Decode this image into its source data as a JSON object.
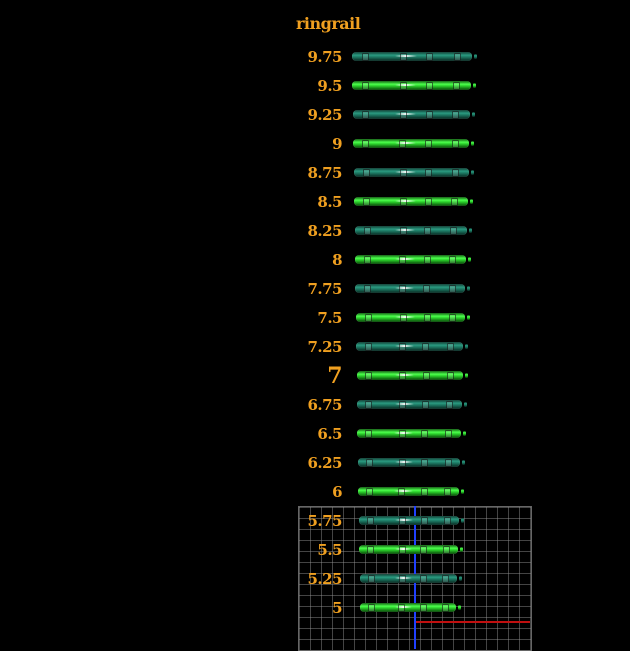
{
  "title": "ringrail",
  "colors": {
    "label": "#f0a020",
    "teal_bar": "#1d7a64",
    "green_bar": "#2bd02b",
    "grid_axis_y": "#2040ff",
    "grid_axis_x": "#c01010"
  },
  "sizes": [
    {
      "label": "9.75",
      "style": "teal"
    },
    {
      "label": "9.5",
      "style": "green"
    },
    {
      "label": "9.25",
      "style": "teal"
    },
    {
      "label": "9",
      "style": "green"
    },
    {
      "label": "8.75",
      "style": "teal"
    },
    {
      "label": "8.5",
      "style": "green"
    },
    {
      "label": "8.25",
      "style": "teal"
    },
    {
      "label": "8",
      "style": "green"
    },
    {
      "label": "7.75",
      "style": "teal"
    },
    {
      "label": "7.5",
      "style": "green"
    },
    {
      "label": "7.25",
      "style": "teal"
    },
    {
      "label": "7",
      "style": "green"
    },
    {
      "label": "6.75",
      "style": "teal"
    },
    {
      "label": "6.5",
      "style": "green"
    },
    {
      "label": "6.25",
      "style": "teal"
    },
    {
      "label": "6",
      "style": "green"
    },
    {
      "label": "5.75",
      "style": "teal"
    },
    {
      "label": "5.5",
      "style": "green"
    },
    {
      "label": "5.25",
      "style": "teal"
    },
    {
      "label": "5",
      "style": "green"
    }
  ]
}
